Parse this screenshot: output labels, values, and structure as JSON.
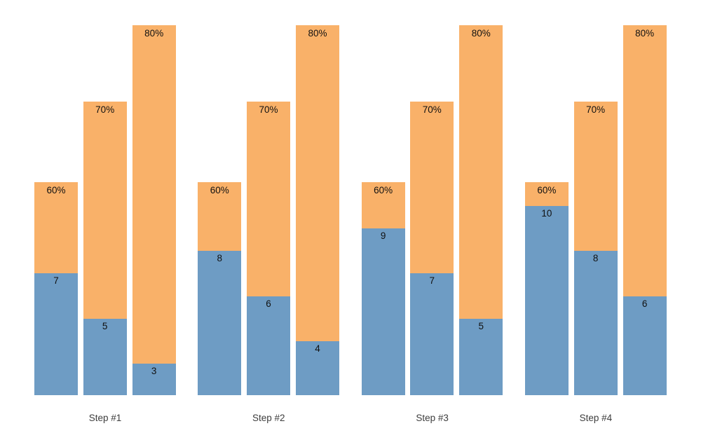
{
  "colors": {
    "blue_segment": "#6E9CC4",
    "orange_segment": "#F9B169",
    "bar_label_text": "#111111",
    "category_label_text": "#3d3d3d",
    "background": "#ffffff"
  },
  "chart_data": {
    "type": "bar",
    "subtype": "grouped-stacked-columns",
    "title": "",
    "xlabel": "",
    "ylabel": "",
    "grid": false,
    "legend": "none",
    "axes_visible": false,
    "categories": [
      "Step #1",
      "Step #2",
      "Step #3",
      "Step #4"
    ],
    "series": [
      {
        "name": "60%",
        "values": [
          7,
          8,
          9,
          10
        ]
      },
      {
        "name": "70%",
        "values": [
          5,
          6,
          7,
          8
        ]
      },
      {
        "name": "80%",
        "values": [
          3,
          4,
          5,
          6
        ]
      }
    ],
    "annotation_notes": "Each group has three stacked columns: blue lower segment labeled with its numeric value (7/5/3, 8/6/4, 9/7/5, 10/8/6), orange upper segment labeled at the top with 60%, 70%, 80%. Orange column total heights are identical across groups for the same percent level."
  }
}
